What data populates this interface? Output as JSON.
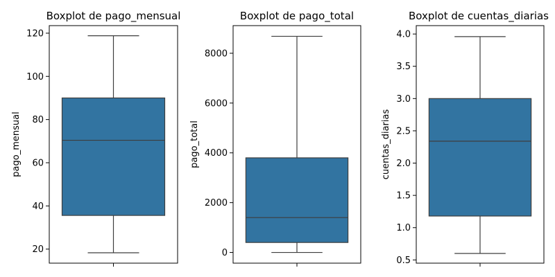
{
  "chart_data": [
    {
      "type": "box",
      "title": "Boxplot de pago_mensual",
      "ylabel": "pago_mensual",
      "xlabel": "",
      "ylim": [
        13.5,
        123.5
      ],
      "yticks": [
        20,
        40,
        60,
        80,
        100,
        120
      ],
      "tick_labels": [
        "20",
        "40",
        "60",
        "80",
        "100",
        "120"
      ],
      "box": {
        "whisker_low": 18.3,
        "q1": 35.6,
        "median": 70.4,
        "q3": 90.0,
        "whisker_high": 118.8
      },
      "color": "#3274a1",
      "grid": false
    },
    {
      "type": "box",
      "title": "Boxplot de pago_total",
      "ylabel": "pago_total",
      "xlabel": "",
      "ylim": [
        -430,
        9110
      ],
      "yticks": [
        0,
        2000,
        4000,
        6000,
        8000
      ],
      "tick_labels": [
        "0",
        "2000",
        "4000",
        "6000",
        "8000"
      ],
      "box": {
        "whisker_low": 0,
        "q1": 400,
        "median": 1400,
        "q3": 3800,
        "whisker_high": 8680
      },
      "color": "#3274a1",
      "grid": false
    },
    {
      "type": "box",
      "title": "Boxplot de cuentas_diarias",
      "ylabel": "cuentas_diarias",
      "xlabel": "",
      "ylim": [
        0.45,
        4.13
      ],
      "yticks": [
        0.5,
        1.0,
        1.5,
        2.0,
        2.5,
        3.0,
        3.5,
        4.0
      ],
      "tick_labels": [
        "0.5",
        "1.0",
        "1.5",
        "2.0",
        "2.5",
        "3.0",
        "3.5",
        "4.0"
      ],
      "box": {
        "whisker_low": 0.6,
        "q1": 1.18,
        "median": 2.34,
        "q3": 3.0,
        "whisker_high": 3.96
      },
      "color": "#3274a1",
      "grid": false
    }
  ]
}
